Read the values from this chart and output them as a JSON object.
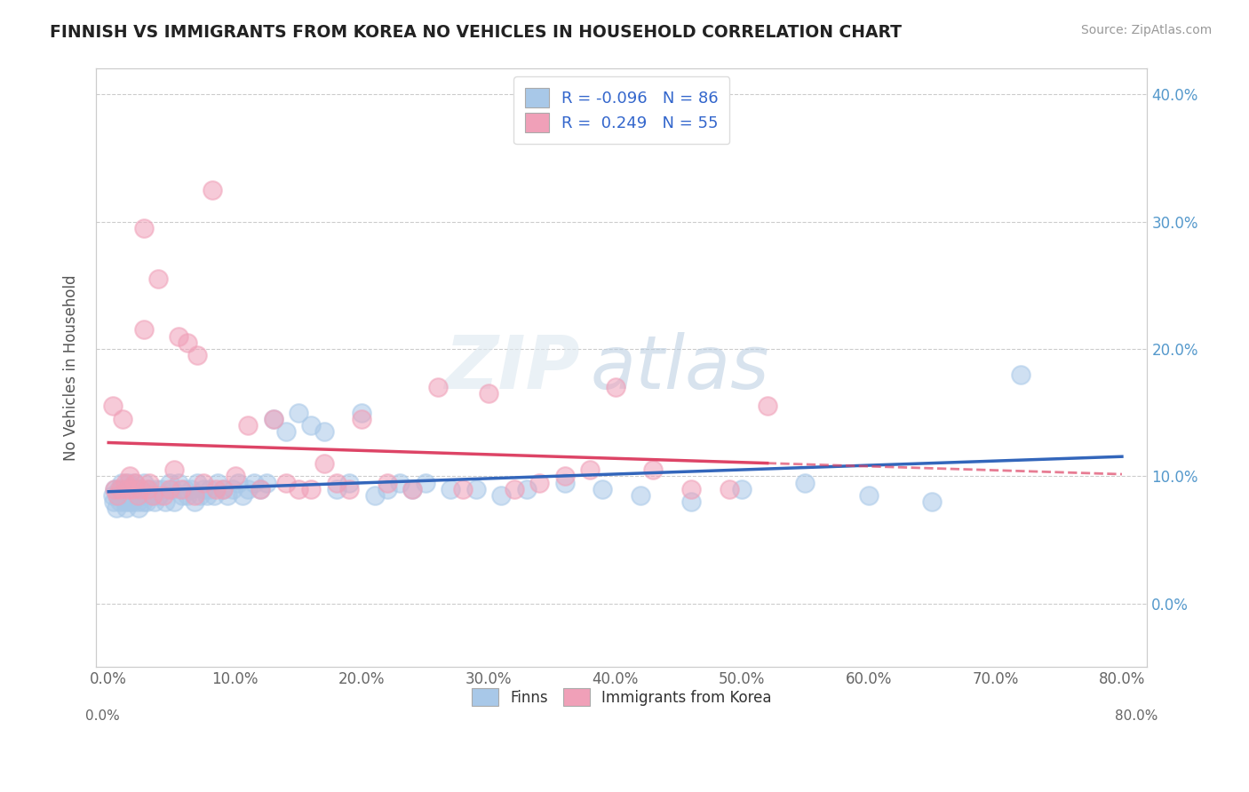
{
  "title": "FINNISH VS IMMIGRANTS FROM KOREA NO VEHICLES IN HOUSEHOLD CORRELATION CHART",
  "source": "Source: ZipAtlas.com",
  "ylabel": "No Vehicles in Household",
  "watermark": "ZIPatlas",
  "xlim": [
    -1.0,
    82.0
  ],
  "ylim": [
    -5.0,
    42.0
  ],
  "xtick_vals": [
    0.0,
    10.0,
    20.0,
    30.0,
    40.0,
    50.0,
    60.0,
    70.0,
    80.0
  ],
  "ytick_vals": [
    0.0,
    10.0,
    20.0,
    30.0,
    40.0
  ],
  "legend_R_finns": "-0.096",
  "legend_N_finns": "86",
  "legend_R_korea": "0.249",
  "legend_N_korea": "55",
  "finns_color": "#a8c8e8",
  "korea_color": "#f0a0b8",
  "finns_line_color": "#3366bb",
  "korea_line_color": "#dd4466",
  "background_color": "#ffffff",
  "finns_x": [
    0.3,
    0.4,
    0.5,
    0.6,
    0.7,
    0.8,
    0.9,
    1.0,
    1.1,
    1.2,
    1.3,
    1.4,
    1.5,
    1.6,
    1.7,
    1.8,
    1.9,
    2.0,
    2.1,
    2.2,
    2.3,
    2.4,
    2.5,
    2.6,
    2.7,
    2.8,
    2.9,
    3.0,
    3.2,
    3.4,
    3.6,
    3.8,
    4.0,
    4.2,
    4.5,
    4.8,
    5.0,
    5.2,
    5.5,
    5.8,
    6.0,
    6.2,
    6.5,
    6.8,
    7.0,
    7.2,
    7.5,
    7.8,
    8.0,
    8.3,
    8.6,
    9.0,
    9.4,
    9.8,
    10.2,
    10.6,
    11.0,
    11.5,
    12.0,
    12.5,
    13.0,
    14.0,
    15.0,
    16.0,
    17.0,
    18.0,
    19.0,
    20.0,
    21.0,
    22.0,
    23.0,
    24.0,
    25.0,
    27.0,
    29.0,
    31.0,
    33.0,
    36.0,
    39.0,
    42.0,
    46.0,
    50.0,
    55.0,
    60.0,
    65.0,
    72.0
  ],
  "finns_y": [
    8.5,
    8.0,
    9.0,
    7.5,
    8.5,
    9.0,
    8.0,
    9.5,
    8.5,
    9.0,
    8.0,
    7.5,
    9.5,
    8.0,
    9.0,
    8.5,
    8.0,
    9.5,
    8.5,
    9.0,
    8.0,
    7.5,
    8.5,
    9.0,
    8.0,
    9.5,
    8.5,
    8.0,
    9.0,
    8.5,
    8.0,
    9.0,
    8.5,
    9.0,
    8.0,
    9.5,
    9.0,
    8.0,
    9.5,
    8.5,
    9.0,
    8.5,
    9.0,
    8.0,
    9.5,
    8.5,
    9.0,
    8.5,
    9.0,
    8.5,
    9.5,
    9.0,
    8.5,
    9.0,
    9.5,
    8.5,
    9.0,
    9.5,
    9.0,
    9.5,
    14.5,
    13.5,
    15.0,
    14.0,
    13.5,
    9.0,
    9.5,
    15.0,
    8.5,
    9.0,
    9.5,
    9.0,
    9.5,
    9.0,
    9.0,
    8.5,
    9.0,
    9.5,
    9.0,
    8.5,
    8.0,
    9.0,
    9.5,
    8.5,
    8.0,
    18.0
  ],
  "korea_x": [
    0.3,
    0.5,
    0.7,
    0.9,
    1.1,
    1.3,
    1.5,
    1.7,
    1.9,
    2.1,
    2.3,
    2.5,
    2.8,
    3.1,
    3.5,
    3.9,
    4.3,
    4.8,
    5.2,
    5.7,
    6.2,
    6.8,
    7.5,
    8.2,
    9.0,
    10.0,
    11.0,
    12.0,
    13.0,
    14.0,
    15.0,
    16.0,
    17.0,
    18.0,
    19.0,
    20.0,
    22.0,
    24.0,
    26.0,
    28.0,
    30.0,
    32.0,
    34.0,
    36.0,
    38.0,
    40.0,
    43.0,
    46.0,
    49.0,
    52.0,
    5.5,
    8.5,
    3.2,
    2.8,
    7.0
  ],
  "korea_y": [
    15.5,
    9.0,
    8.5,
    9.0,
    14.5,
    9.5,
    9.0,
    10.0,
    9.0,
    9.5,
    8.5,
    9.0,
    21.5,
    9.0,
    8.5,
    25.5,
    8.5,
    9.0,
    10.5,
    9.0,
    20.5,
    8.5,
    9.5,
    32.5,
    9.0,
    10.0,
    14.0,
    9.0,
    14.5,
    9.5,
    9.0,
    9.0,
    11.0,
    9.5,
    9.0,
    14.5,
    9.5,
    9.0,
    17.0,
    9.0,
    16.5,
    9.0,
    9.5,
    10.0,
    10.5,
    17.0,
    10.5,
    9.0,
    9.0,
    15.5,
    21.0,
    9.0,
    9.5,
    29.5,
    19.5
  ]
}
